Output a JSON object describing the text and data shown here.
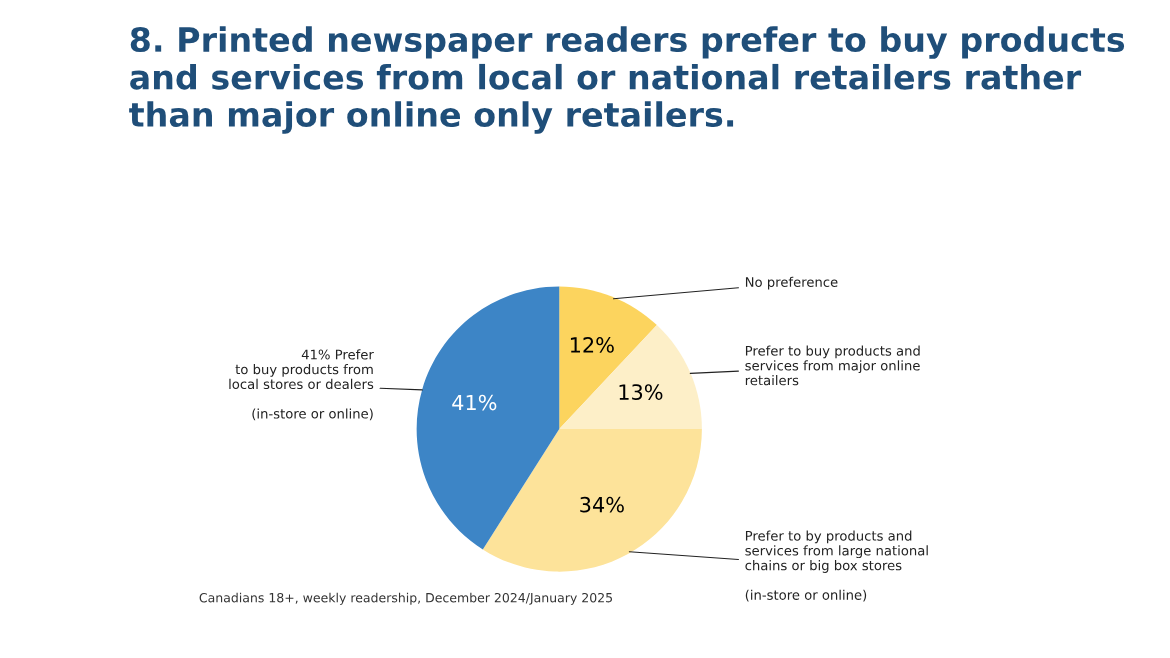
{
  "chart_data": {
    "type": "pie",
    "title": "8. Printed newspaper readers prefer to buy products and services from local or national retailers rather than major online only retailers.",
    "categories": [
      "No preference",
      "Prefer to buy products and\nservices from major online\nretailers",
      "Prefer to by products and\nservices from large national\nchains or big box stores\n\n(in-store or online)",
      "41% Prefer\nto buy products from\nlocal stores or dealers\n\n(in-store or online)"
    ],
    "values": [
      12,
      13,
      34,
      41
    ],
    "colors": [
      "#fcd45e",
      "#fdefc8",
      "#fde39a",
      "#3d85c6"
    ],
    "value_labels": [
      "12%",
      "13%",
      "34%",
      "41%"
    ],
    "legend": false,
    "annotations": [
      "Canadians 18+, weekly readership, December 2024/January 2025"
    ]
  }
}
